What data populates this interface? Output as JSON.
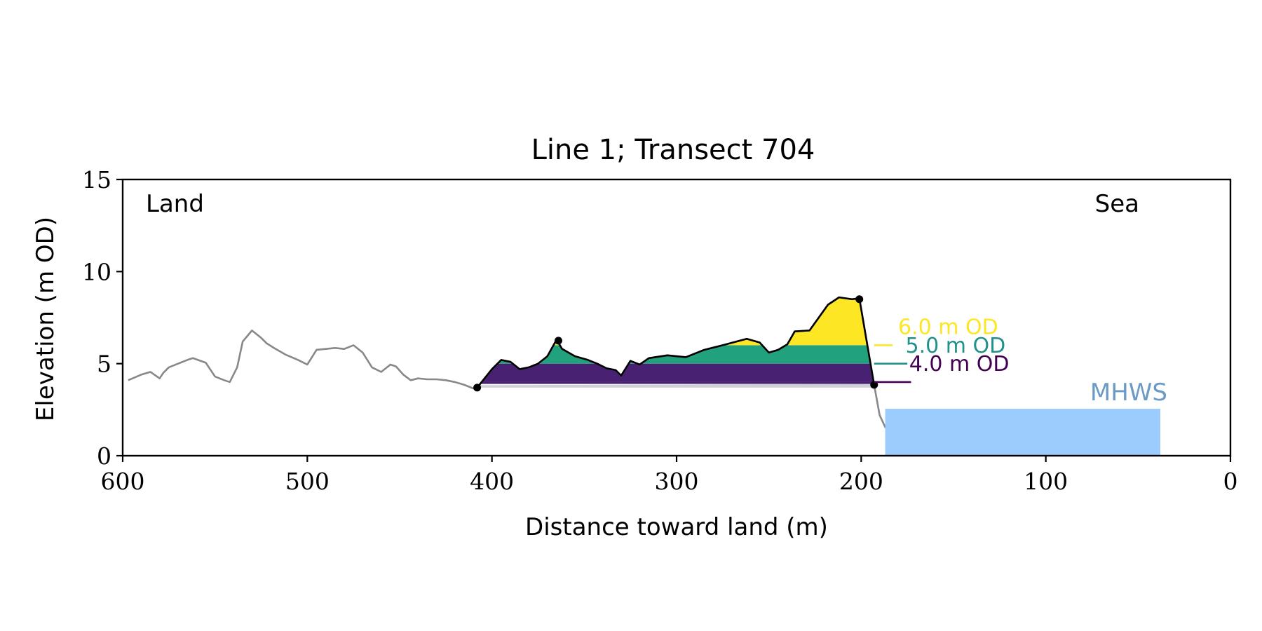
{
  "chart_data": {
    "type": "area",
    "title": "Line 1; Transect 704",
    "xlabel": "Distance toward land (m)",
    "ylabel": "Elevation (m OD)",
    "xlim": [
      600,
      0
    ],
    "ylim": [
      0,
      15
    ],
    "x_ticks": [
      600,
      500,
      400,
      300,
      200,
      100,
      0
    ],
    "y_ticks": [
      0,
      5,
      10,
      15
    ],
    "x_tick_labels": [
      "600",
      "500",
      "400",
      "300",
      "200",
      "100",
      "0"
    ],
    "y_tick_labels": [
      "0",
      "5",
      "10",
      "15"
    ],
    "annotations": {
      "land": "Land",
      "sea": "Sea",
      "mhws": "MHWS"
    },
    "grid": false,
    "profile": {
      "x": [
        597,
        590,
        585,
        580,
        578,
        575,
        570,
        565,
        562,
        555,
        550,
        545,
        542,
        538,
        535,
        530,
        525,
        522,
        518,
        512,
        505,
        500,
        495,
        490,
        485,
        480,
        475,
        470,
        465,
        460,
        455,
        452,
        448,
        444,
        440,
        435,
        430,
        425,
        420,
        415,
        410,
        408,
        400,
        395,
        390,
        385,
        380,
        375,
        370,
        365,
        362,
        355,
        348,
        343,
        338,
        333,
        330,
        325,
        320,
        315,
        305,
        295,
        285,
        275,
        262,
        255,
        250,
        245,
        240,
        236,
        228,
        218,
        212,
        205,
        201,
        193,
        190,
        187,
        184,
        170,
        150,
        135,
        123,
        110,
        98,
        90,
        85,
        82
      ],
      "y": [
        4.1,
        4.4,
        4.55,
        4.2,
        4.5,
        4.8,
        5.0,
        5.2,
        5.3,
        5.05,
        4.3,
        4.1,
        4.0,
        4.8,
        6.2,
        6.8,
        6.4,
        6.1,
        5.85,
        5.5,
        5.2,
        4.95,
        5.75,
        5.8,
        5.85,
        5.8,
        6.0,
        5.6,
        4.8,
        4.55,
        4.95,
        4.85,
        4.4,
        4.1,
        4.2,
        4.15,
        4.15,
        4.1,
        4.0,
        3.85,
        3.65,
        3.7,
        4.7,
        5.2,
        5.1,
        4.7,
        4.8,
        5.0,
        5.4,
        6.3,
        5.8,
        5.4,
        5.2,
        5.0,
        4.75,
        4.65,
        4.35,
        5.15,
        4.95,
        5.3,
        5.45,
        5.35,
        5.75,
        6.0,
        6.35,
        6.15,
        5.6,
        5.75,
        6.05,
        6.75,
        6.8,
        8.2,
        8.6,
        8.5,
        8.55,
        3.85,
        2.2,
        1.55,
        1.35,
        1.25,
        1.2,
        1.1,
        0.85,
        0.6,
        0.5,
        0.2,
        0.05,
        0.0
      ]
    },
    "dune": {
      "x_start": 408,
      "x_end": 193,
      "base": 3.7
    },
    "thresholds": [
      {
        "name": "6.0 m OD",
        "level": 6.0,
        "color": "#fde725"
      },
      {
        "name": "5.0 m OD",
        "level": 5.0,
        "color": "#21a186"
      },
      {
        "name": "4.0 m OD",
        "level": 4.0,
        "color": "#440154"
      }
    ],
    "dune_markers": [
      {
        "x": 408,
        "y": 3.7
      },
      {
        "x": 364,
        "y": 6.25
      },
      {
        "x": 201,
        "y": 8.5
      },
      {
        "x": 193,
        "y": 3.85
      }
    ],
    "mhws": {
      "x_start": 187,
      "x_end": 38,
      "level": 2.55
    },
    "colors": {
      "profile": "#888888",
      "dune_outline": "#000000",
      "fill_4m": "#482173",
      "fill_5m": "#22a17f",
      "fill_6m": "#fde724",
      "base_band": "#cfd0d6",
      "mhws_fill": "#9ccbfd",
      "mhws_label": "#6b9ac4",
      "label_6m": "#fde725",
      "label_5m": "#21918c",
      "label_4m": "#440154"
    }
  }
}
